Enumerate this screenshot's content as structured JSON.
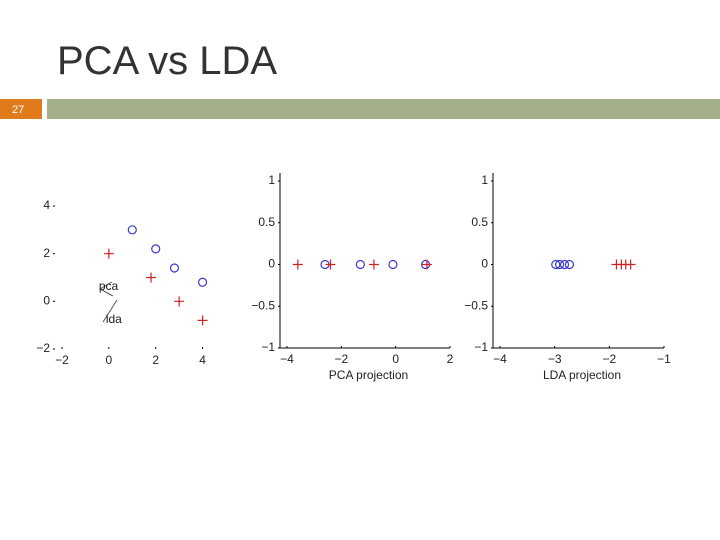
{
  "title": "PCA vs LDA",
  "slide_number": "27",
  "chart_data": [
    {
      "type": "scatter",
      "annotations": [
        "pca",
        "lda"
      ],
      "frame": false,
      "xlim": [
        -2,
        5
      ],
      "xticks": [
        {
          "value": -2,
          "label": "−2"
        },
        0,
        2,
        4
      ],
      "ylim": [
        -2,
        4
      ],
      "yticks": [
        {
          "value": -2,
          "label": "−2"
        },
        0,
        2,
        4
      ],
      "series": [
        {
          "marker": "circle",
          "color": "#3a3acc",
          "x": [
            1,
            2,
            2.8,
            4
          ],
          "values": [
            3,
            2.2,
            1.4,
            0.8
          ]
        },
        {
          "marker": "plus",
          "color": "#cc2222",
          "x": [
            0,
            1.8,
            3,
            4
          ],
          "values": [
            2,
            1,
            0,
            -0.8
          ]
        }
      ]
    },
    {
      "type": "scatter",
      "xlabel": "PCA projection",
      "frame": true,
      "xlim": [
        -4,
        2
      ],
      "xticks": [
        {
          "value": -4,
          "label": "−4"
        },
        {
          "value": -2,
          "label": "−2"
        },
        0,
        2
      ],
      "ylim": [
        -1,
        1
      ],
      "yticks": [
        {
          "value": -1,
          "label": "−1"
        },
        {
          "value": -0.5,
          "label": "−0.5"
        },
        0,
        0.5,
        1
      ],
      "series": [
        {
          "marker": "circle",
          "color": "#3a3acc",
          "x": [
            -2.6,
            -1.3,
            -0.1,
            1.1
          ],
          "values": [
            0,
            0,
            0,
            0
          ]
        },
        {
          "marker": "plus",
          "color": "#cc2222",
          "x": [
            -3.6,
            -2.4,
            -0.8,
            1.15
          ],
          "values": [
            0,
            0,
            0,
            0
          ]
        }
      ]
    },
    {
      "type": "scatter",
      "xlabel": "LDA projection",
      "frame": true,
      "xlim": [
        -4,
        -1
      ],
      "xticks": [
        {
          "value": -4,
          "label": "−4"
        },
        {
          "value": -3,
          "label": "−3"
        },
        {
          "value": -2,
          "label": "−2"
        },
        {
          "value": -1,
          "label": "−1"
        }
      ],
      "ylim": [
        -1,
        1
      ],
      "yticks": [
        {
          "value": -1,
          "label": "−1"
        },
        {
          "value": -0.5,
          "label": "−0.5"
        },
        0,
        0.5,
        1
      ],
      "series": [
        {
          "marker": "circle",
          "color": "#3a3acc",
          "x": [
            -2.98,
            -2.91,
            -2.82,
            -2.73
          ],
          "values": [
            0,
            0,
            0,
            0
          ]
        },
        {
          "marker": "plus",
          "color": "#cc2222",
          "x": [
            -1.87,
            -1.78,
            -1.7,
            -1.61
          ],
          "values": [
            0,
            0,
            0,
            0
          ]
        }
      ]
    }
  ]
}
